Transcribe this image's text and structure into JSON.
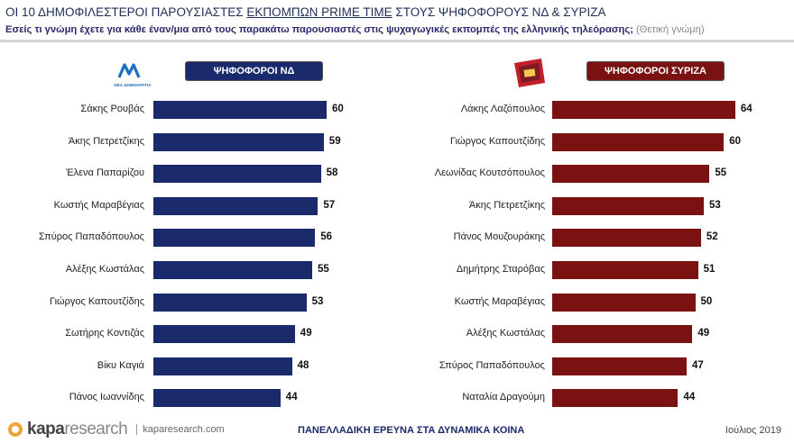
{
  "header": {
    "title_pre": "ΟΙ 10 ΔΗΜΟΦΙΛΕΣΤΕΡΟΙ ΠΑΡΟΥΣΙΑΣΤΕΣ ",
    "title_underlined": "ΕΚΠΟΜΠΩΝ PRIME TIME",
    "title_post": " ΣΤΟΥΣ ΨΗΦΟΦΟΡΟΥΣ ΝΔ & ΣΥΡΙΖΑ",
    "subtitle": "Εσείς τι γνώμη έχετε για κάθε έναν/μια από τους παρακάτω παρουσιαστές στις ψυχαγωγικές εκπομπές της ελληνικής τηλεόρασης;",
    "subtitle_note": "(Θετική γνώμη)"
  },
  "logos": {
    "nd_text": "ΝΕΑ ΔΗΜΟΚΡΑΤΙΑ"
  },
  "colors": {
    "nd": "#1b2a6b",
    "syriza": "#7b1212"
  },
  "chart_data": [
    {
      "type": "bar",
      "orientation": "horizontal",
      "header_label": "ΨΗΦΟΦΟΡΟΙ ΝΔ",
      "categories": [
        "Σάκης Ρουβάς",
        "Άκης Πετρετζίκης",
        "Έλενα Παπαρίζου",
        "Κωστής Μαραβέγιας",
        "Σπύρος Παπαδόπουλος",
        "Αλέξης Κωστάλας",
        "Γιώργος Καπουτζίδης",
        "Σωτήρης Κοντιζάς",
        "Βίκυ Καγιά",
        "Πάνος Ιωαννίδης"
      ],
      "values": [
        60,
        59,
        58,
        57,
        56,
        55,
        53,
        49,
        48,
        44
      ],
      "color": "#1b2a6b"
    },
    {
      "type": "bar",
      "orientation": "horizontal",
      "header_label": "ΨΗΦΟΦΟΡΟΙ ΣΥΡΙΖΑ",
      "categories": [
        "Λάκης Λαζόπουλος",
        "Γιώργος Καπουτζίδης",
        "Λεωνίδας Κουτσόπουλος",
        "Άκης Πετρετζίκης",
        "Πάνος Μουζουράκης",
        "Δημήτρης Σταρόβας",
        "Κωστής Μαραβέγιας",
        "Αλέξης Κωστάλας",
        "Σπύρος Παπαδόπουλος",
        "Ναταλία Δραγούμη"
      ],
      "values": [
        64,
        60,
        55,
        53,
        52,
        51,
        50,
        49,
        47,
        44
      ],
      "color": "#7b1212"
    }
  ],
  "footer": {
    "brand_bold": "kapa",
    "brand_light": "research",
    "site": "kaparesearch.com",
    "center": "ΠΑΝΕΛΛΑΔΙΚΗ ΕΡΕΥΝΑ ΣΤΑ ΔΥΝΑΜΙΚΑ ΚΟΙΝΑ",
    "date": "Ιούλιος 2019"
  }
}
